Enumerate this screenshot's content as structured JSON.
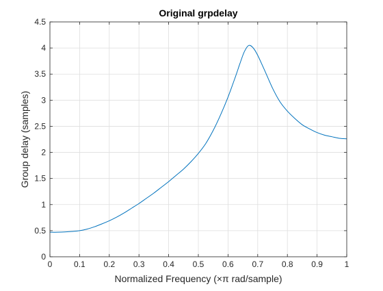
{
  "chart_data": {
    "type": "line",
    "title": "Original grpdelay",
    "xlabel": "Normalized Frequency (×π rad/sample)",
    "ylabel": "Group delay (samples)",
    "xlim": [
      0,
      1
    ],
    "ylim": [
      0,
      4.5
    ],
    "xticks": [
      0,
      0.1,
      0.2,
      0.3,
      0.4,
      0.5,
      0.6,
      0.7,
      0.8,
      0.9,
      1
    ],
    "xtick_labels": [
      "0",
      "0.1",
      "0.2",
      "0.3",
      "0.4",
      "0.5",
      "0.6",
      "0.7",
      "0.8",
      "0.9",
      "1"
    ],
    "yticks": [
      0,
      0.5,
      1,
      1.5,
      2,
      2.5,
      3,
      3.5,
      4,
      4.5
    ],
    "ytick_labels": [
      "0",
      "0.5",
      "1",
      "1.5",
      "2",
      "2.5",
      "3",
      "3.5",
      "4",
      "4.5"
    ],
    "grid": true,
    "line_color": "#0072BD",
    "series": [
      {
        "x": [
          0,
          0.025,
          0.05,
          0.075,
          0.1,
          0.125,
          0.15,
          0.175,
          0.2,
          0.225,
          0.25,
          0.275,
          0.3,
          0.325,
          0.35,
          0.375,
          0.4,
          0.425,
          0.45,
          0.475,
          0.5,
          0.525,
          0.55,
          0.575,
          0.6,
          0.625,
          0.64,
          0.655,
          0.67,
          0.685,
          0.7,
          0.725,
          0.75,
          0.775,
          0.8,
          0.825,
          0.85,
          0.875,
          0.9,
          0.925,
          0.95,
          0.975,
          1
        ],
        "y": [
          0.47,
          0.47,
          0.475,
          0.485,
          0.5,
          0.53,
          0.575,
          0.63,
          0.69,
          0.76,
          0.84,
          0.93,
          1.02,
          1.12,
          1.22,
          1.33,
          1.44,
          1.56,
          1.68,
          1.82,
          1.98,
          2.17,
          2.42,
          2.72,
          3.06,
          3.45,
          3.7,
          3.93,
          4.05,
          4.0,
          3.86,
          3.55,
          3.23,
          2.97,
          2.79,
          2.65,
          2.53,
          2.45,
          2.38,
          2.33,
          2.3,
          2.27,
          2.26
        ]
      }
    ]
  }
}
